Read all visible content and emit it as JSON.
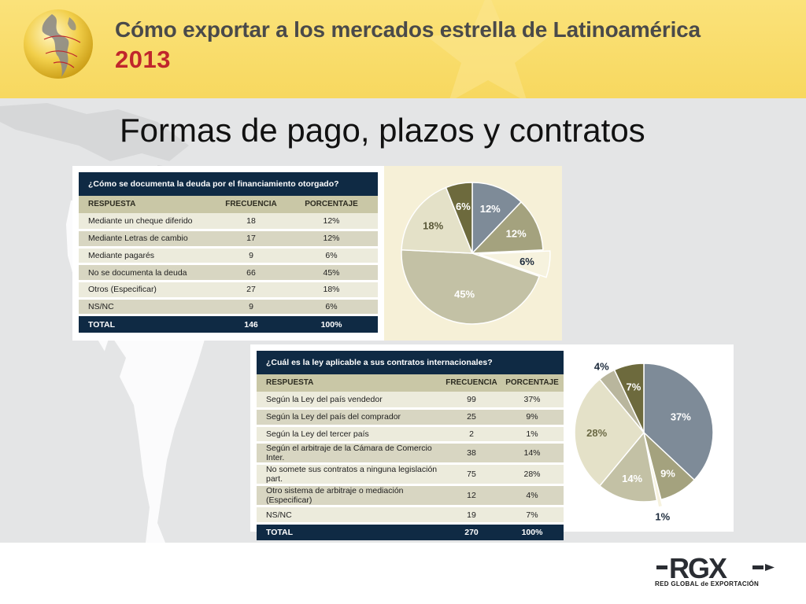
{
  "header": {
    "title": "Cómo exportar a los mercados estrella de Latinoamérica",
    "year": "2013"
  },
  "section_title": "Formas de pago, plazos y contratos",
  "table1": {
    "question": "¿Cómo se documenta la deuda por el financiamiento otorgado?",
    "col_respuesta": "RESPUESTA",
    "col_frecuencia": "FRECUENCIA",
    "col_porcentaje": "PORCENTAJE",
    "rows": [
      {
        "label": "Mediante un cheque diferido",
        "freq": "18",
        "pct": "12%"
      },
      {
        "label": "Mediante Letras de cambio",
        "freq": "17",
        "pct": "12%"
      },
      {
        "label": "Mediante pagarés",
        "freq": "9",
        "pct": "6%"
      },
      {
        "label": "No se documenta la deuda",
        "freq": "66",
        "pct": "45%"
      },
      {
        "label": "Otros (Especificar)",
        "freq": "27",
        "pct": "18%"
      },
      {
        "label": "NS/NC",
        "freq": "9",
        "pct": "6%"
      }
    ],
    "total_label": "TOTAL",
    "total_freq": "146",
    "total_pct": "100%"
  },
  "table2": {
    "question": "¿Cuál es la ley aplicable a sus contratos internacionales?",
    "col_respuesta": "RESPUESTA",
    "col_frecuencia": "FRECUENCIA",
    "col_porcentaje": "PORCENTAJE",
    "rows": [
      {
        "label": "Según la Ley del país vendedor",
        "freq": "99",
        "pct": "37%"
      },
      {
        "label": "Según la Ley del país del comprador",
        "freq": "25",
        "pct": "9%"
      },
      {
        "label": "Según la Ley del tercer país",
        "freq": "2",
        "pct": "1%"
      },
      {
        "label": "Según el arbitraje de la Cámara de Comercio Inter.",
        "freq": "38",
        "pct": "14%"
      },
      {
        "label": "No somete sus contratos a ninguna legislación part.",
        "freq": "75",
        "pct": "28%"
      },
      {
        "label": "Otro sistema de arbitraje o mediación (Especificar)",
        "freq": "12",
        "pct": "4%"
      },
      {
        "label": "NS/NC",
        "freq": "19",
        "pct": "7%"
      }
    ],
    "total_label": "TOTAL",
    "total_freq": "270",
    "total_pct": "100%"
  },
  "chart_data": [
    {
      "type": "pie",
      "categories": [
        "Mediante un cheque diferido",
        "Mediante Letras de cambio",
        "Mediante pagarés",
        "No se documenta la deuda",
        "Otros (Especificar)",
        "NS/NC"
      ],
      "values": [
        12,
        12,
        6,
        45,
        18,
        6
      ],
      "labels": [
        "12%",
        "12%",
        "6%",
        "45%",
        "18%",
        "6%"
      ],
      "colors": [
        "#7e8b98",
        "#a4a27e",
        "#f6f2de",
        "#c3c1a5",
        "#e4e1c8",
        "#6d6a3d"
      ],
      "label_colors": [
        "#ffffff",
        "#ffffff",
        "#1d2b3c",
        "#ffffff",
        "#5a5838",
        "#ffffff"
      ],
      "exploded": [
        2
      ]
    },
    {
      "type": "pie",
      "categories": [
        "Según la Ley del país vendedor",
        "Según la Ley del país del comprador",
        "Según la Ley del tercer país",
        "Según el arbitraje de la Cámara de Comercio Inter.",
        "No somete sus contratos a ninguna legislación part.",
        "Otro sistema de arbitraje o mediación (Especificar)",
        "NS/NC"
      ],
      "values": [
        37,
        9,
        1,
        14,
        28,
        4,
        7
      ],
      "labels": [
        "37%",
        "9%",
        "1%",
        "14%",
        "28%",
        "4%",
        "7%"
      ],
      "colors": [
        "#7e8b98",
        "#a4a27e",
        "#f6f2de",
        "#c3c1a5",
        "#e4e1c8",
        "#b9b69d",
        "#6d6a3d"
      ],
      "label_colors": [
        "#ffffff",
        "#ffffff",
        "#1d2b3c",
        "#ffffff",
        "#6b6944",
        "#1d2b3c",
        "#ffffff"
      ],
      "exploded": [
        2
      ]
    }
  ],
  "logo": {
    "text": "RGX",
    "subtitle": "RED GLOBAL de EXPORTACIÓN"
  }
}
